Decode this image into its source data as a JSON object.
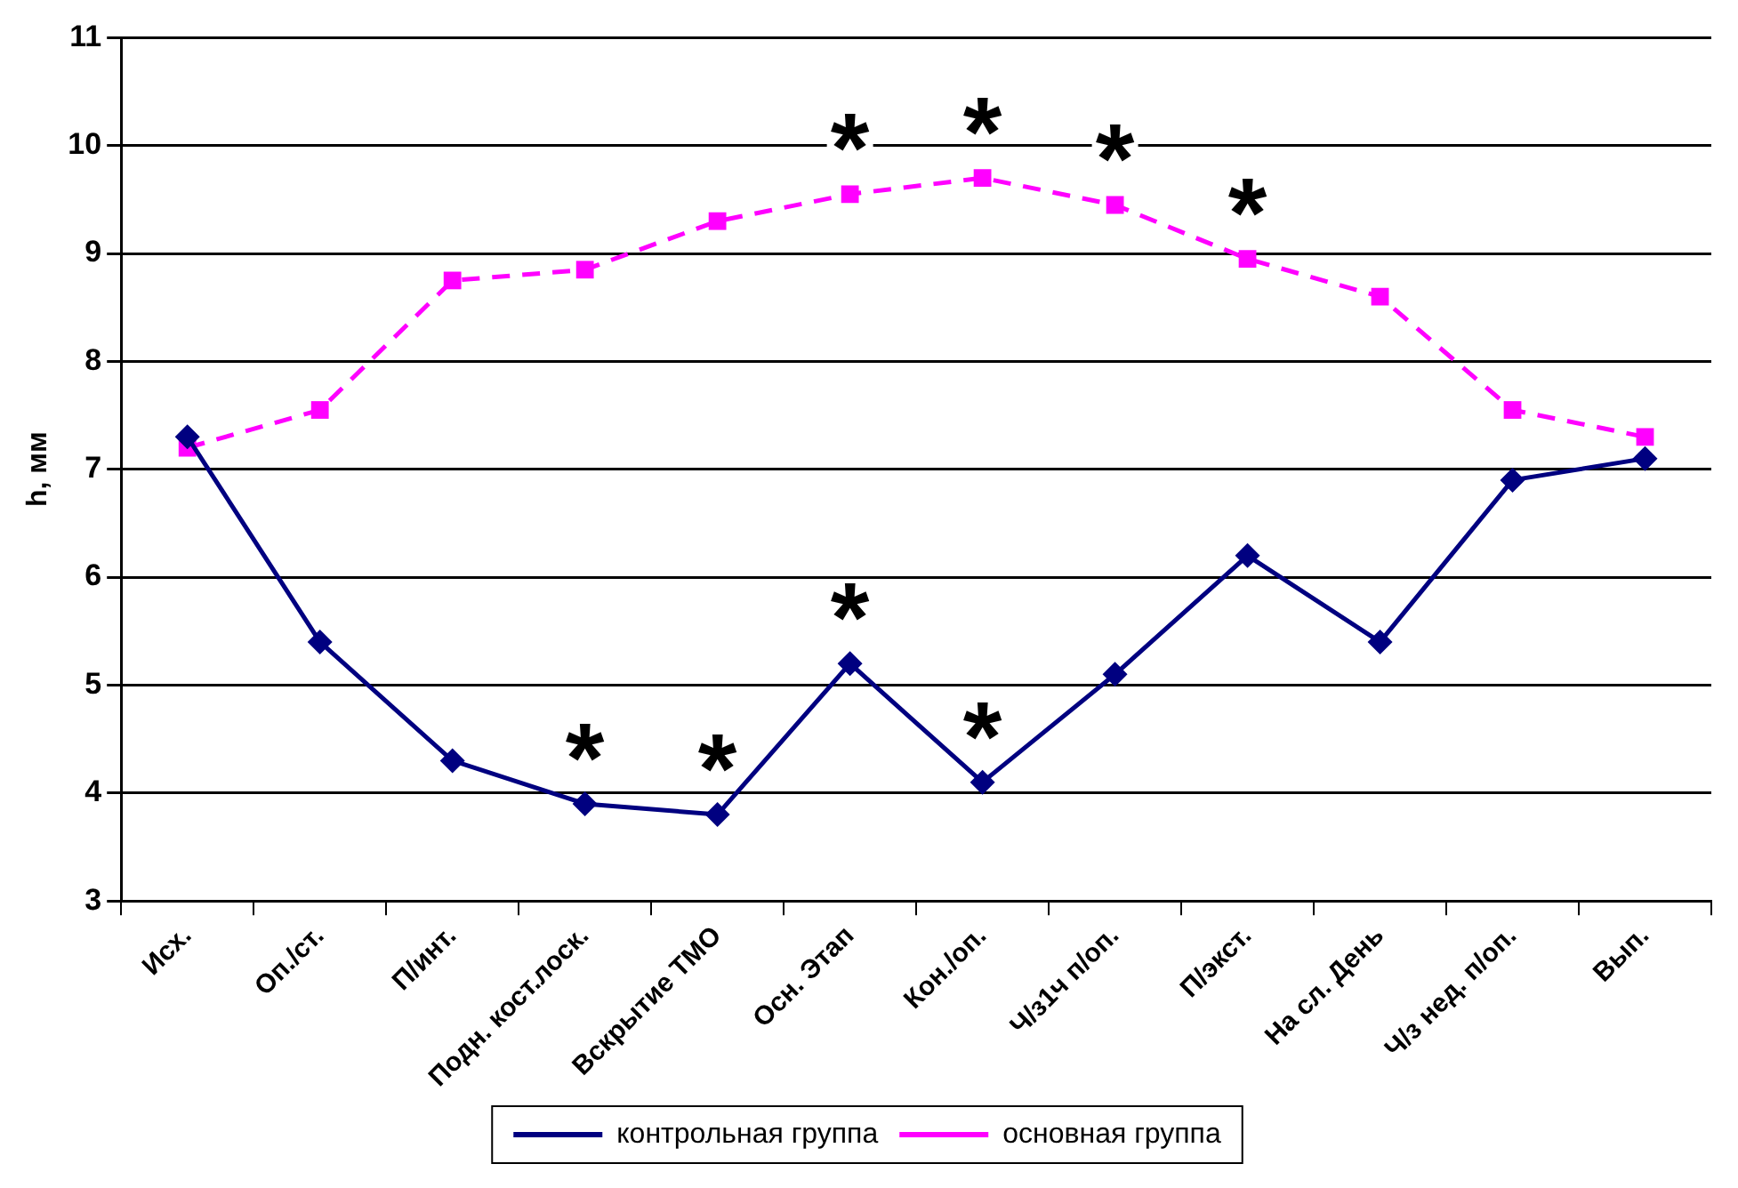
{
  "chart_data": {
    "type": "line",
    "ylabel": "h, мм",
    "categories": [
      "Исх.",
      "Оп./ст.",
      "П/инт.",
      "Подн. кост.лоск.",
      "Вскрытие ТМО",
      "Осн. Этап",
      "Кон./оп.",
      "Ч/з1ч п/оп.",
      "П/экст.",
      "На сл. День",
      "Ч/з нед. п/оп.",
      "Вып."
    ],
    "series": [
      {
        "name": "контрольная группа",
        "color": "#000080",
        "marker": "diamond",
        "line_style": "solid",
        "values": [
          7.3,
          5.4,
          4.3,
          3.9,
          3.8,
          5.2,
          4.1,
          5.1,
          6.2,
          5.4,
          6.9,
          7.1
        ]
      },
      {
        "name": "основная группа",
        "color": "#ff00ff",
        "marker": "square",
        "line_style": "dashed",
        "values": [
          7.2,
          7.55,
          8.75,
          8.85,
          9.3,
          9.55,
          9.7,
          9.45,
          8.95,
          8.6,
          7.55,
          7.3
        ]
      }
    ],
    "ylim": [
      3,
      11
    ],
    "yticks": [
      3,
      4,
      5,
      6,
      7,
      8,
      9,
      10,
      11
    ],
    "grid": "y",
    "legend": "bottom",
    "annotations": [
      {
        "text": "*",
        "x": "Подн. кост.лоск.",
        "y": 3.9
      },
      {
        "text": "*",
        "x": "Вскрытие ТМО",
        "y": 3.8
      },
      {
        "text": "*",
        "x": "Осн. Этап",
        "y": 5.2
      },
      {
        "text": "*",
        "x": "Кон./оп.",
        "y": 4.1
      },
      {
        "text": "*",
        "x": "Осн. Этап",
        "y": 9.55
      },
      {
        "text": "*",
        "x": "Кон./оп.",
        "y": 9.7
      },
      {
        "text": "*",
        "x": "Ч/з1ч п/оп.",
        "y": 9.45
      },
      {
        "text": "*",
        "x": "П/экст.",
        "y": 8.95
      }
    ]
  }
}
